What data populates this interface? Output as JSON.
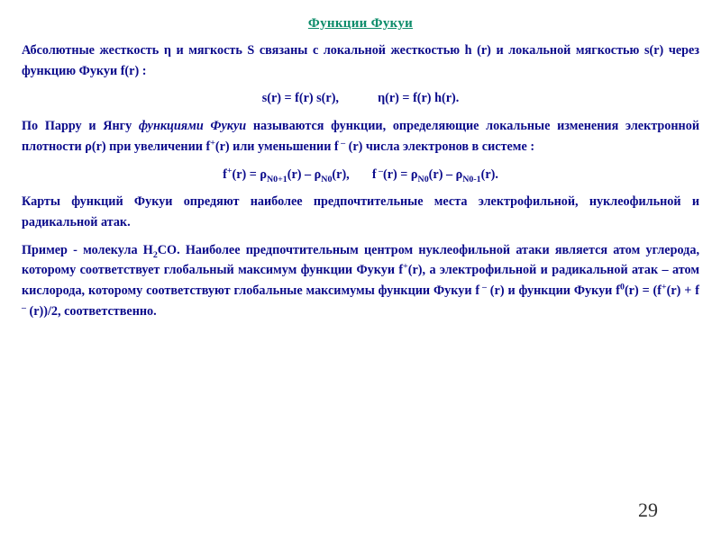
{
  "colors": {
    "background": "#ffffff",
    "body_text": "#0b0b8b",
    "title_text": "#0d8c6a",
    "page_number": "#333333"
  },
  "typography": {
    "font_family": "Times New Roman",
    "body_fontsize_pt": 11,
    "title_fontsize_pt": 12,
    "page_number_fontsize_pt": 18,
    "body_weight": "bold",
    "title_decoration": "underline"
  },
  "title": "Функции Фукуи",
  "paragraphs": {
    "p1_prefix": "Абсолютные жесткость ",
    "p1_sym_eta": "η",
    "p1_mid1": " и мягкость S связаны с локальной жесткостью h (r) и локальной мягкостью s(r) через функцию Фукуи f(r) :",
    "eq1_left": "s(r) = f(r) s(r),",
    "eq1_right_eta": "η",
    "eq1_right_tail": "(r) = f(r) h(r).",
    "p2_prefix": "По Парру и Янгу ",
    "p2_italic": "функциями Фукуи",
    "p2_mid": " называются функции, определяющие локальные изменения электронной плотности ρ(r) при увеличении f",
    "p2_sup_plus": "+",
    "p2_mid2": "(r) или уменьшении f",
    "p2_sup_minus": " –",
    "p2_tail": " (r) числа электронов в системе :",
    "eq2_a1": "f",
    "eq2_a_sup_plus": "+",
    "eq2_a2": "(r) = ρ",
    "eq2_a_sub1": "N0+1",
    "eq2_a3": "(r) – ρ",
    "eq2_a_sub2": "N0",
    "eq2_a4": "(r),",
    "eq2_b1": "f",
    "eq2_b_sup_minus": " –",
    "eq2_b2": "(r) = ρ",
    "eq2_b_sub1": "N0",
    "eq2_b3": "(r) – ρ",
    "eq2_b_sub2": "N0-1",
    "eq2_b4": "(r).",
    "p3": "Карты функций Фукуи опредяют наиболее предпочтительные места электрофильной, нуклеофильной и радикальной атак.",
    "p4_prefix": "Пример - молекула H",
    "p4_sub": "2",
    "p4_mid1": "CO. Наиболее предпочтительным центром нуклеофильной атаки является атом углерода, которому соответствует глобальный максимум функции Фукуи f",
    "p4_sup_plus": "+",
    "p4_mid2": "(r), а электрофильной и радикальной атак – атом кислорода, которому соответствуют глобальные максимумы функции Фукуи f",
    "p4_sup_minus": " –",
    "p4_mid3": " (r) и функции Фукуи f",
    "p4_sup_zero": "0",
    "p4_mid4": "(r) =  (f",
    "p4_sup_plus2": "+",
    "p4_mid5": "(r) + f",
    "p4_sup_minus2": " –",
    "p4_tail": " (r))/2, соответственно."
  },
  "page_number": "29"
}
